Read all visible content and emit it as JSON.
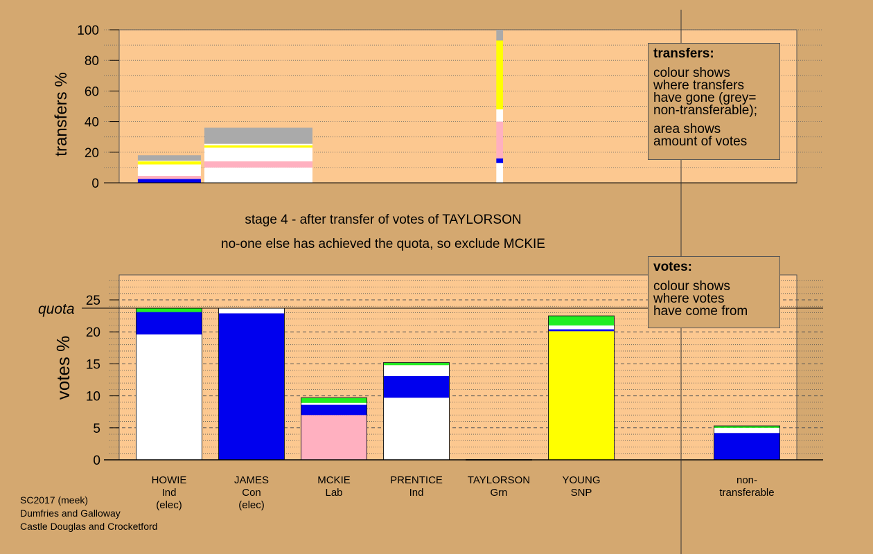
{
  "footer": {
    "line1": "SC2017 (meek)",
    "line2": "Dumfries and Galloway",
    "line3": "Castle Douglas and Crocketford"
  },
  "stage_title": "stage 4 - after transfer of votes of TAYLORSON",
  "stage_subtitle": "no-one else has achieved the quota, so exclude MCKIE",
  "transfers_note": {
    "title": "transfers:",
    "para1": [
      "colour shows",
      "where transfers",
      "have gone (grey=",
      "non-transferable);"
    ],
    "para2": [
      "area shows",
      "amount of votes"
    ]
  },
  "votes_note": {
    "title": "votes:",
    "para1": [
      "colour shows",
      "where votes",
      "have come from"
    ]
  },
  "quota_label": "quota",
  "colors": {
    "background": "#d4a870",
    "plot_background": "#fcc890",
    "Ind": "#ffffff",
    "Con": "#0000ee",
    "Lab": "#ffb0c0",
    "Grn": "#22ee22",
    "SNP": "#ffff00",
    "nontransferable": "#aaaaaa"
  },
  "chart_data": [
    {
      "type": "bar",
      "name": "transfers",
      "ylabel": "transfers %",
      "ylim": [
        0,
        100
      ],
      "yticks": [
        0,
        20,
        40,
        60,
        80,
        100
      ],
      "grid": "dotted",
      "bars": [
        {
          "candidate": "HOWIE",
          "width_share": 0.14,
          "segments": [
            {
              "color": "Con",
              "from": 0,
              "to": 2.5
            },
            {
              "color": "Lab",
              "from": 2.5,
              "to": 4.5
            },
            {
              "color": "Ind",
              "from": 4.5,
              "to": 12
            },
            {
              "color": "SNP",
              "from": 12,
              "to": 14
            },
            {
              "color": "Ind",
              "from": 14,
              "to": 14.5
            },
            {
              "color": "nontransferable",
              "from": 14.5,
              "to": 18
            }
          ]
        },
        {
          "candidate": "JAMES",
          "width_share": 0.24,
          "segments": [
            {
              "color": "Ind",
              "from": 0,
              "to": 10
            },
            {
              "color": "Lab",
              "from": 10,
              "to": 14
            },
            {
              "color": "Ind",
              "from": 14,
              "to": 23
            },
            {
              "color": "SNP",
              "from": 23,
              "to": 24.5
            },
            {
              "color": "Ind",
              "from": 24.5,
              "to": 25.5
            },
            {
              "color": "nontransferable",
              "from": 25.5,
              "to": 36
            }
          ]
        },
        {
          "candidate": "TAYLORSON",
          "width_share": 0.015,
          "segments": [
            {
              "color": "Ind",
              "from": 0,
              "to": 13
            },
            {
              "color": "Con",
              "from": 13,
              "to": 16
            },
            {
              "color": "Lab",
              "from": 16,
              "to": 40
            },
            {
              "color": "Ind",
              "from": 40,
              "to": 48
            },
            {
              "color": "SNP",
              "from": 48,
              "to": 93
            },
            {
              "color": "nontransferable",
              "from": 93,
              "to": 100
            }
          ]
        }
      ]
    },
    {
      "type": "bar",
      "name": "votes",
      "ylabel": "votes %",
      "ylim": [
        0,
        25
      ],
      "yticks": [
        0,
        5,
        10,
        15,
        20,
        25
      ],
      "quota": 23.7,
      "grid": "dashed",
      "categories": [
        [
          "HOWIE",
          "Ind",
          "(elec)"
        ],
        [
          "JAMES",
          "Con",
          "(elec)"
        ],
        [
          "MCKIE",
          "Lab"
        ],
        [
          "PRENTICE",
          "Ind"
        ],
        [
          "TAYLORSON",
          "Grn"
        ],
        [
          "YOUNG",
          "SNP"
        ],
        [],
        [
          "non-",
          "transferable"
        ]
      ],
      "bars": [
        {
          "candidate": "HOWIE",
          "segments": [
            {
              "color": "Ind",
              "from": 0,
              "to": 19.6
            },
            {
              "color": "Con",
              "from": 19.6,
              "to": 23.1
            },
            {
              "color": "Grn",
              "from": 23.1,
              "to": 23.7
            }
          ]
        },
        {
          "candidate": "JAMES",
          "segments": [
            {
              "color": "Con",
              "from": 0,
              "to": 22.9
            },
            {
              "color": "Ind",
              "from": 22.9,
              "to": 23.7
            }
          ]
        },
        {
          "candidate": "MCKIE",
          "segments": [
            {
              "color": "Lab",
              "from": 0,
              "to": 7.0
            },
            {
              "color": "Con",
              "from": 7.0,
              "to": 8.6
            },
            {
              "color": "Ind",
              "from": 8.6,
              "to": 8.9
            },
            {
              "color": "Grn",
              "from": 8.9,
              "to": 9.7
            }
          ]
        },
        {
          "candidate": "PRENTICE",
          "segments": [
            {
              "color": "Ind",
              "from": 0,
              "to": 9.7
            },
            {
              "color": "Con",
              "from": 9.7,
              "to": 13.1
            },
            {
              "color": "Ind",
              "from": 13.1,
              "to": 14.8
            },
            {
              "color": "Grn",
              "from": 14.8,
              "to": 15.2
            }
          ]
        },
        {
          "candidate": "TAYLORSON",
          "segments": [
            {
              "color": "Grn",
              "from": 0,
              "to": 0.05
            }
          ]
        },
        {
          "candidate": "YOUNG",
          "segments": [
            {
              "color": "SNP",
              "from": 0,
              "to": 20.1
            },
            {
              "color": "Con",
              "from": 20.1,
              "to": 20.4
            },
            {
              "color": "Ind",
              "from": 20.4,
              "to": 21.0
            },
            {
              "color": "Grn",
              "from": 21.0,
              "to": 22.5
            }
          ]
        },
        {
          "candidate": "",
          "segments": []
        },
        {
          "candidate": "non-transferable",
          "segments": [
            {
              "color": "Con",
              "from": 0,
              "to": 4.2
            },
            {
              "color": "Ind",
              "from": 4.2,
              "to": 5.0
            },
            {
              "color": "Grn",
              "from": 5.0,
              "to": 5.3
            }
          ]
        }
      ]
    }
  ]
}
